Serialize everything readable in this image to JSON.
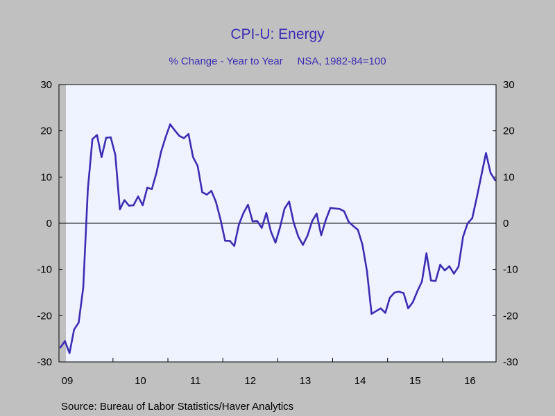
{
  "chart_data": {
    "type": "line",
    "title": "CPI-U: Energy",
    "subtitle": "% Change - Year to Year     NSA, 1982-84=100",
    "source": "Source:  Bureau of Labor Statistics/Haver Analytics",
    "xlabel": "",
    "ylabel": "",
    "ylim": [
      -30,
      30
    ],
    "yticks": [
      30,
      20,
      10,
      0,
      -10,
      -20,
      -30
    ],
    "ytick_labels": [
      "30",
      "20",
      "10",
      "0",
      "-10",
      "-20",
      "-30"
    ],
    "x_tick_labels": [
      "09",
      "10",
      "11",
      "12",
      "13",
      "14",
      "15",
      "16"
    ],
    "x_start": "2009-01",
    "frequency": "monthly",
    "grid": false,
    "zero_line": true,
    "recession_shading": {
      "from": "2009-01",
      "to": "2009-06"
    },
    "colors": {
      "line": "#3b2db4",
      "plot_bg": "#eef3ff",
      "page_bg": "#c0c0c0",
      "shade": "#c0c0c0"
    },
    "series": [
      {
        "values": [
          -26.9,
          -25.5,
          -28.1,
          -23.0,
          -21.5,
          -13.9,
          7.3,
          18.2,
          19.1,
          14.3,
          18.5,
          18.6,
          14.8,
          3.0,
          5.0,
          3.8,
          3.9,
          5.8,
          3.9,
          7.7,
          7.4,
          10.9,
          15.4,
          18.6,
          21.4,
          20.1,
          18.9,
          18.4,
          19.3,
          14.3,
          12.4,
          6.7,
          6.2,
          7.0,
          4.6,
          0.8,
          -3.8,
          -3.8,
          -4.9,
          -0.3,
          2.2,
          4.0,
          0.4,
          0.5,
          -1.0,
          2.2,
          -1.8,
          -4.2,
          -0.9,
          3.2,
          4.7,
          0.1,
          -2.9,
          -4.7,
          -2.7,
          0.4,
          2.1,
          -2.6,
          0.7,
          3.3,
          3.2,
          3.1,
          2.6,
          0.3,
          -0.6,
          -1.4,
          -4.6,
          -10.4,
          -19.6,
          -19.0,
          -18.4,
          -19.4,
          -16.1,
          -15.0,
          -14.8,
          -15.1,
          -18.4,
          -17.1,
          -14.7,
          -12.6,
          -6.5,
          -12.4,
          -12.5,
          -9.0,
          -10.2,
          -9.3,
          -10.9,
          -9.4,
          -2.9,
          0.0,
          1.1,
          5.6,
          10.4,
          15.2,
          10.9,
          9.3
        ]
      }
    ]
  }
}
